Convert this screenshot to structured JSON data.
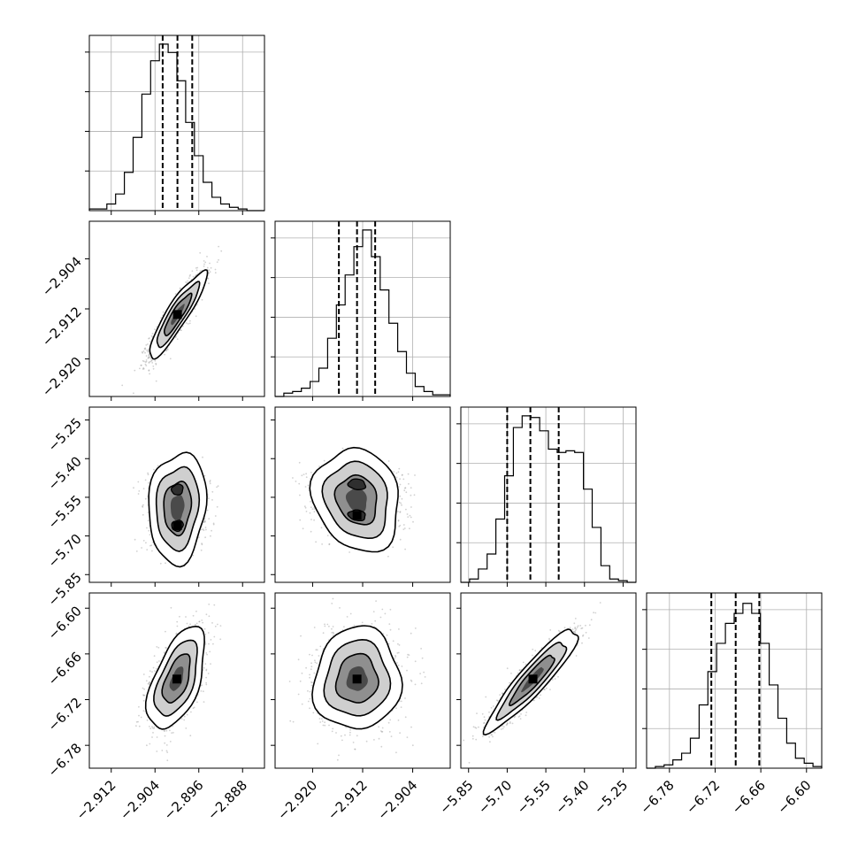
{
  "chart_data": {
    "type": "corner",
    "title": "",
    "quantile_lines": "dashed",
    "grid": true,
    "parameters": [
      {
        "index": 0,
        "range": [
          -2.916,
          -2.884
        ],
        "ticks": [
          -2.912,
          -2.904,
          -2.896,
          -2.888
        ],
        "tick_labels": [
          "−2.912",
          "−2.904",
          "−2.896",
          "−2.888"
        ],
        "quantiles": [
          -2.9026,
          -2.8999,
          -2.8972
        ]
      },
      {
        "index": 1,
        "range": [
          -2.926,
          -2.898
        ],
        "ticks": [
          -2.92,
          -2.912,
          -2.904
        ],
        "tick_labels": [
          "−2.920",
          "−2.912",
          "−2.904"
        ],
        "quantiles": [
          -2.9158,
          -2.9129,
          -2.91
        ]
      },
      {
        "index": 2,
        "range": [
          -5.88,
          -5.2
        ],
        "ticks": [
          -5.85,
          -5.7,
          -5.55,
          -5.4,
          -5.25
        ],
        "tick_labels": [
          "−5.85",
          "−5.70",
          "−5.55",
          "−5.40",
          "−5.25"
        ],
        "quantiles": [
          -5.7,
          -5.61,
          -5.5
        ]
      },
      {
        "index": 3,
        "range": [
          -6.81,
          -6.58
        ],
        "ticks": [
          -6.78,
          -6.72,
          -6.66,
          -6.6
        ],
        "tick_labels": [
          "−6.78",
          "−6.72",
          "−6.66",
          "−6.60"
        ],
        "quantiles": [
          -6.725,
          -6.693,
          -6.662
        ]
      }
    ],
    "histograms": [
      {
        "param": 0,
        "ymax": 1.0,
        "values": [
          0.01,
          0.01,
          0.04,
          0.1,
          0.23,
          0.44,
          0.7,
          0.9,
          1.0,
          0.95,
          0.78,
          0.53,
          0.33,
          0.17,
          0.08,
          0.04,
          0.02,
          0.01,
          0.0,
          0.0
        ]
      },
      {
        "param": 1,
        "ymax": 1.0,
        "values": [
          0.0,
          0.02,
          0.03,
          0.05,
          0.09,
          0.17,
          0.35,
          0.55,
          0.73,
          0.9,
          1.0,
          0.84,
          0.64,
          0.44,
          0.27,
          0.14,
          0.06,
          0.03,
          0.01,
          0.01
        ]
      },
      {
        "param": 2,
        "ymax": 1.0,
        "values": [
          0.0,
          0.02,
          0.08,
          0.17,
          0.38,
          0.64,
          0.93,
          1.0,
          0.99,
          0.91,
          0.8,
          0.78,
          0.79,
          0.78,
          0.56,
          0.33,
          0.1,
          0.02,
          0.01,
          0.0
        ]
      },
      {
        "param": 3,
        "ymax": 1.0,
        "values": [
          0.0,
          0.01,
          0.02,
          0.05,
          0.09,
          0.18,
          0.38,
          0.58,
          0.75,
          0.87,
          0.93,
          0.99,
          0.93,
          0.75,
          0.5,
          0.3,
          0.15,
          0.06,
          0.03,
          0.01
        ]
      }
    ],
    "pairs": [
      {
        "x_param": 0,
        "y_param": 1,
        "mean": [
          -2.8999,
          -2.9129
        ],
        "sd": [
          0.0025,
          0.0033
        ],
        "corr": 0.9,
        "mode": "single"
      },
      {
        "x_param": 0,
        "y_param": 2,
        "mean": [
          -2.8999,
          -5.6
        ],
        "sd": [
          0.0025,
          0.085
        ],
        "corr": 0.1,
        "mode": "bimodal_y",
        "y_centers": [
          -5.66,
          -5.52
        ]
      },
      {
        "x_param": 1,
        "y_param": 2,
        "mean": [
          -2.9129,
          -5.6
        ],
        "sd": [
          0.0033,
          0.085
        ],
        "corr": -0.15,
        "mode": "bimodal_y",
        "y_centers": [
          -5.62,
          -5.5
        ]
      },
      {
        "x_param": 0,
        "y_param": 3,
        "mean": [
          -2.9,
          -6.693
        ],
        "sd": [
          0.0025,
          0.032
        ],
        "corr": 0.55,
        "mode": "single"
      },
      {
        "x_param": 1,
        "y_param": 3,
        "mean": [
          -2.9129,
          -6.693
        ],
        "sd": [
          0.0033,
          0.032
        ],
        "corr": 0.05,
        "mode": "single"
      },
      {
        "x_param": 2,
        "y_param": 3,
        "mean": [
          -5.6,
          -6.693
        ],
        "sd": [
          0.085,
          0.032
        ],
        "corr": 0.92,
        "mode": "single"
      }
    ]
  }
}
